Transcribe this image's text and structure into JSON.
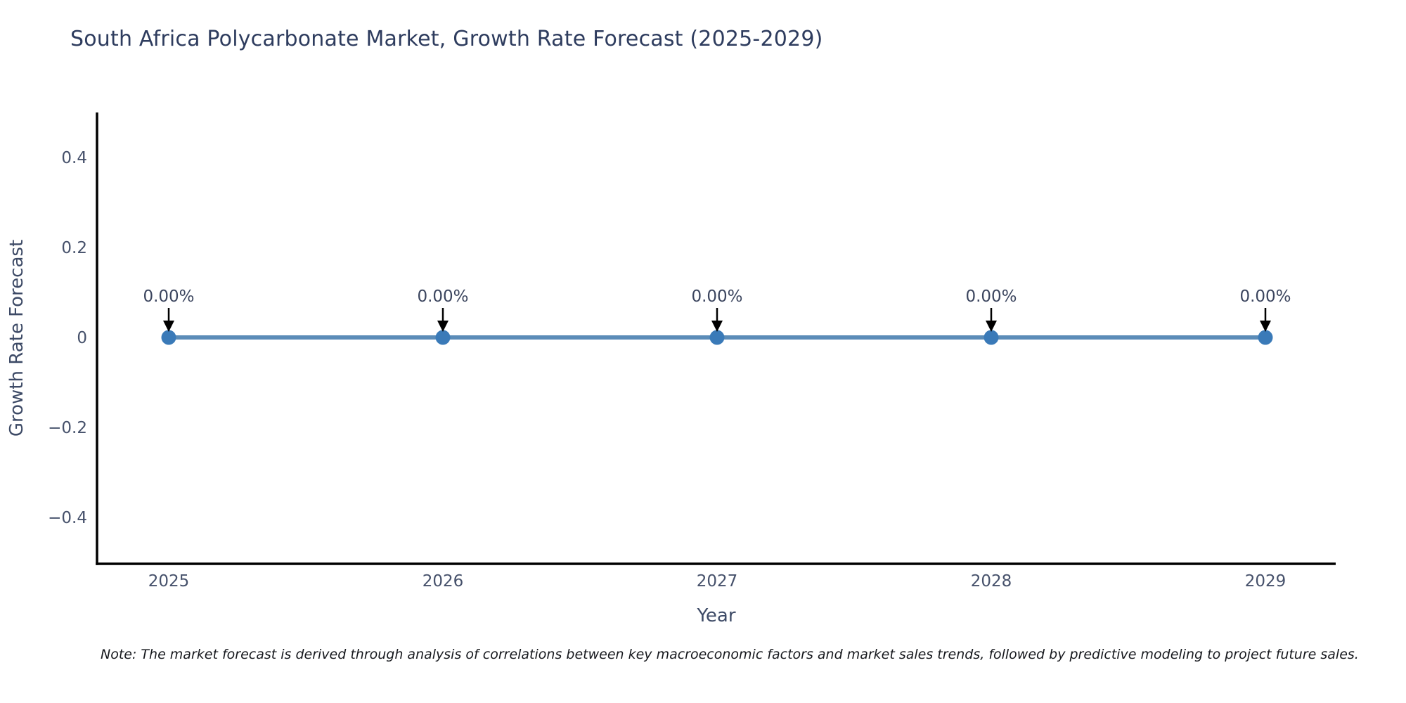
{
  "figure": {
    "note": "Note: The market forecast is derived through analysis of correlations between key macroeconomic factors and market sales trends, followed by predictive modeling to project future sales."
  },
  "chart_data": {
    "type": "line",
    "title": "South Africa Polycarbonate Market, Growth Rate Forecast (2025-2029)",
    "xlabel": "Year",
    "ylabel": "Growth Rate Forecast",
    "categories": [
      "2025",
      "2026",
      "2027",
      "2028",
      "2029"
    ],
    "series": [
      {
        "name": "Growth Rate Forecast",
        "values": [
          0,
          0,
          0,
          0,
          0
        ]
      }
    ],
    "point_labels": [
      "0.00%",
      "0.00%",
      "0.00%",
      "0.00%",
      "0.00%"
    ],
    "yticks": [
      0.4,
      0.2,
      0,
      -0.2,
      -0.4
    ],
    "ytick_labels": [
      "0.4",
      "0.2",
      "0",
      "−0.2",
      "−0.4"
    ],
    "ylim": [
      -0.5,
      0.5
    ],
    "grid": false,
    "legend": "none",
    "annotations_style": "down-arrow",
    "colors": {
      "line": "#5b8cb8",
      "marker": "#3a7ab8",
      "axis": "#000000",
      "title_text": "#2e3c5e",
      "axis_title_text": "#3d4a66",
      "tick_text": "#46516b",
      "annotation_text": "#3b455e",
      "annotation_arrow": "#000000",
      "note_text": "#16181d",
      "background": "#ffffff"
    }
  }
}
